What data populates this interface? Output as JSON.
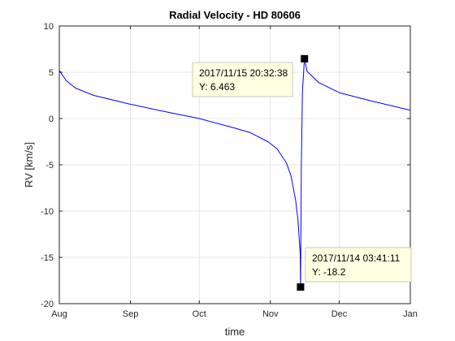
{
  "chart_data": {
    "type": "line",
    "title": "Radial Velocity - HD 80606",
    "xlabel": "time",
    "ylabel": "RV [km/s]",
    "x_range": [
      "2017-08-01",
      "2018-01-01"
    ],
    "ylim": [
      -20,
      10
    ],
    "grid": true,
    "x_ticks": [
      {
        "label": "Aug",
        "date": "2017-08-01"
      },
      {
        "label": "Sep",
        "date": "2017-09-01"
      },
      {
        "label": "Oct",
        "date": "2017-10-01"
      },
      {
        "label": "Nov",
        "date": "2017-11-01"
      },
      {
        "label": "Dec",
        "date": "2017-12-01"
      },
      {
        "label": "Jan",
        "date": "2018-01-01"
      }
    ],
    "y_ticks": [
      10,
      5,
      0,
      -5,
      -10,
      -15,
      -20
    ],
    "series": [
      {
        "color": "#0000ff",
        "x": [
          "2017-08-01",
          "2017-08-04",
          "2017-08-08",
          "2017-08-16",
          "2017-08-31",
          "2017-09-15",
          "2017-10-01",
          "2017-10-16",
          "2017-10-23",
          "2017-10-31",
          "2017-11-04",
          "2017-11-08",
          "2017-11-10",
          "2017-11-12",
          "2017-11-13",
          "2017-11-14",
          "2017-11-14 03:41",
          "2017-11-14 12:00",
          "2017-11-15",
          "2017-11-15 20:32",
          "2017-11-17",
          "2017-11-22",
          "2017-12-01",
          "2017-12-15",
          "2018-01-01"
        ],
        "y": [
          5.2,
          4.1,
          3.3,
          2.5,
          1.6,
          0.8,
          0.0,
          -1.0,
          -1.5,
          -2.5,
          -3.3,
          -4.8,
          -6.2,
          -8.8,
          -10.9,
          -14.5,
          -18.2,
          -5.0,
          3.0,
          6.463,
          5.1,
          3.9,
          2.8,
          1.9,
          0.9
        ]
      }
    ],
    "datatips": [
      {
        "x": "2017-11-15 20:32:38",
        "y": 6.463,
        "line1": "2017/11/15 20:32:38",
        "line2": "Y: 6.463"
      },
      {
        "x": "2017-11-14 03:41:11",
        "y": -18.2,
        "line1": "2017/11/14 03:41:11",
        "line2": "Y: -18.2"
      }
    ],
    "colors": {
      "background": "#ffffff",
      "axes_line": "#262626",
      "grid": "#e6e6e6",
      "tip_fill": "#ffffe1",
      "marker": "#000000"
    }
  }
}
